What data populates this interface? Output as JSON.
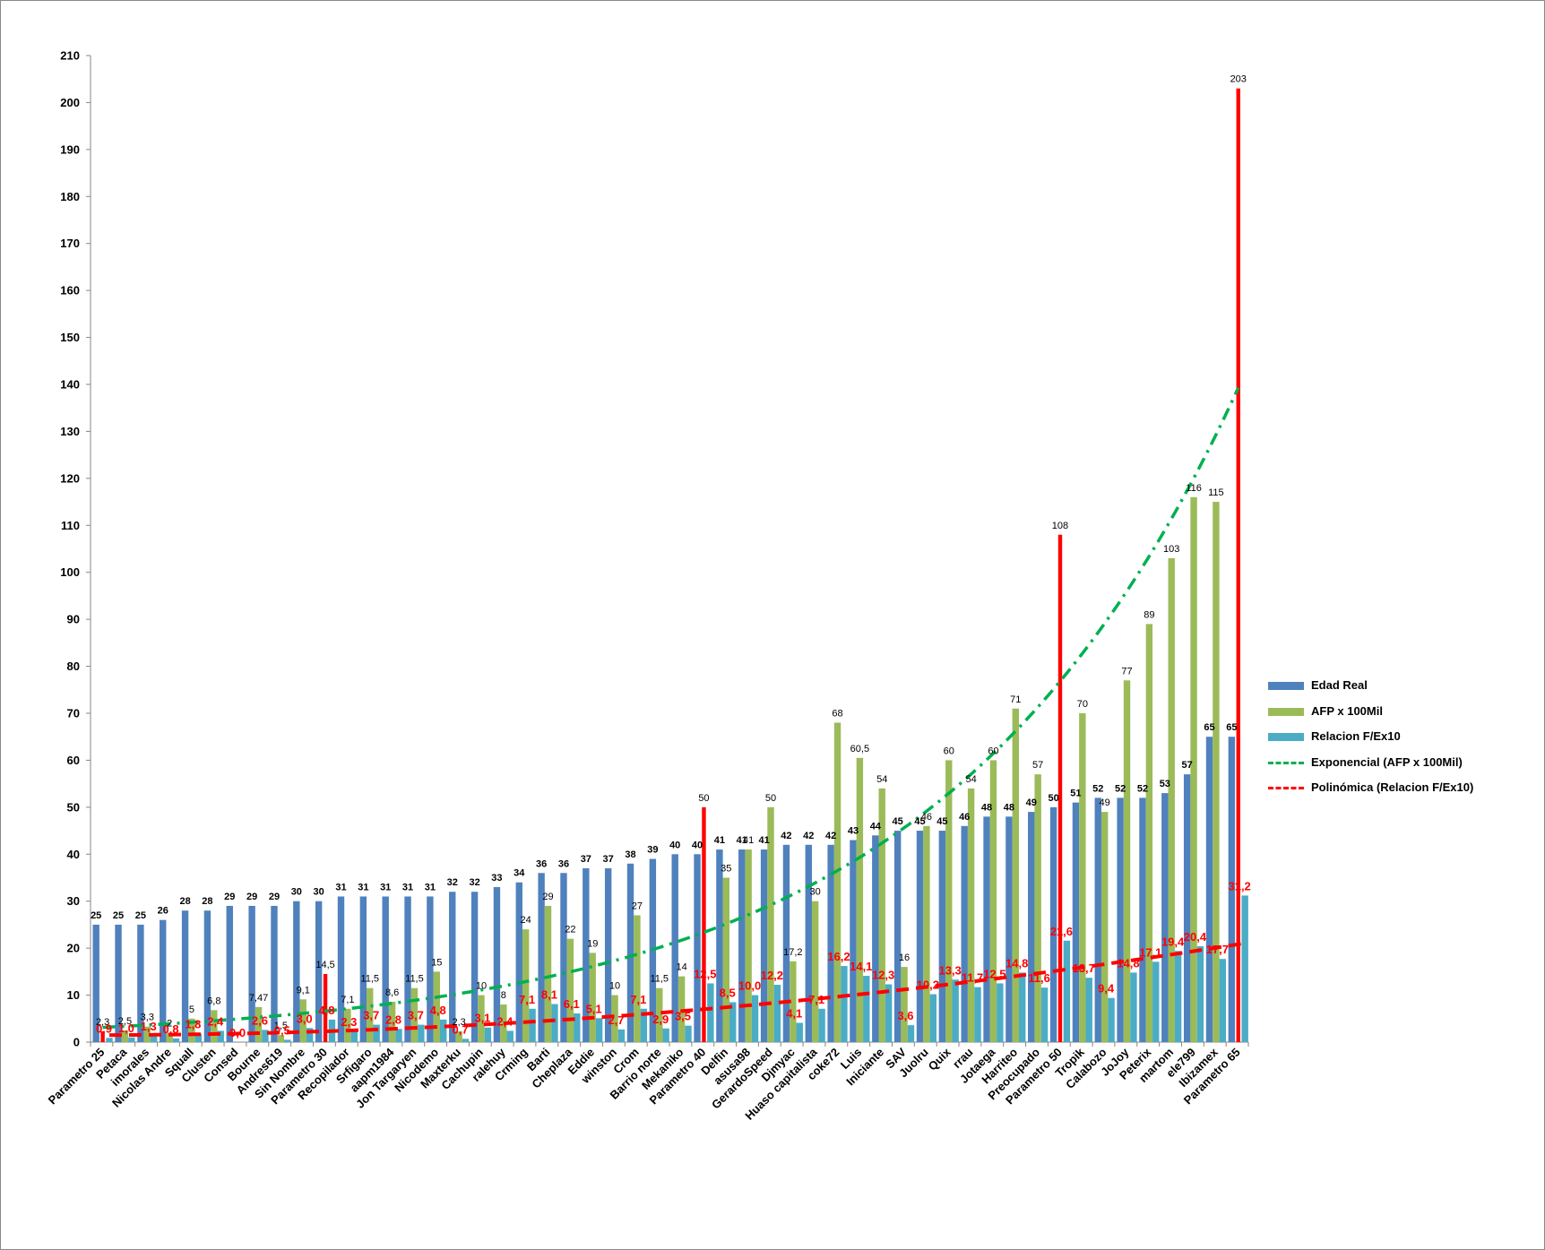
{
  "chart_data": {
    "type": "bar",
    "title": "",
    "xlabel": "",
    "ylabel": "",
    "ylim": [
      0,
      210
    ],
    "yticks": [
      0,
      10,
      20,
      30,
      40,
      50,
      60,
      70,
      80,
      90,
      100,
      110,
      120,
      130,
      140,
      150,
      160,
      170,
      180,
      190,
      200,
      210
    ],
    "grid": false,
    "legend_position": "right",
    "categories": [
      "Parametro 25",
      "Petaca",
      "imorales",
      "Nicolas Andre",
      "Squall",
      "Clusten",
      "Consed",
      "Bourne",
      "Andres619",
      "Sin Nombre",
      "Parametro 30",
      "Recopilador",
      "Srfigaro",
      "aapm1984",
      "Jon Targaryen",
      "Nicodemo",
      "Maxterku",
      "Cachupin",
      "ralehuy",
      "Crming",
      "Barti",
      "Cheplaza",
      "Eddie",
      "winston",
      "Crom",
      "Barrio norte",
      "Mekaniko",
      "Parametro 40",
      "Delfin",
      "asusa98",
      "GerardoSpeed",
      "Djmyac",
      "Huaso capitalista",
      "coke72",
      "Luis",
      "Iniciante",
      "SAV",
      "Juolru",
      "Quix",
      "rrau",
      "Jotaega",
      "Harriteo",
      "Preocupado",
      "Parametro 50",
      "Tropik",
      "Calabozo",
      "JoJoy",
      "Peterix",
      "martom",
      "ele799",
      "Ibizamex",
      "Parametro 65"
    ],
    "highlight_categories": [
      "Parametro 25",
      "Parametro 30",
      "Parametro 40",
      "Parametro 50",
      "Parametro 65"
    ],
    "series": [
      {
        "name": "Edad Real",
        "color": "#4f81bd",
        "values": [
          25,
          25,
          25,
          26,
          28,
          28,
          29,
          29,
          29,
          30,
          30,
          31,
          31,
          31,
          31,
          31,
          32,
          32,
          33,
          34,
          36,
          36,
          37,
          37,
          38,
          39,
          40,
          40,
          41,
          41,
          41,
          42,
          42,
          42,
          43,
          44,
          45,
          45,
          45,
          46,
          48,
          48,
          49,
          50,
          51,
          52,
          52,
          52,
          53,
          57,
          65,
          65
        ],
        "labels": [
          "25",
          "25",
          "25",
          "26",
          "28",
          "28",
          "29",
          "29",
          "29",
          "30",
          "30",
          "31",
          "31",
          "31",
          "31",
          "31",
          "32",
          "32",
          "33",
          "34",
          "36",
          "36",
          "37",
          "37",
          "38",
          "39",
          "40",
          "40",
          "41",
          "41",
          "41",
          "42",
          "42",
          "42",
          "43",
          "44",
          "45",
          "45",
          "45",
          "46",
          "48",
          "48",
          "49",
          "50",
          "51",
          "52",
          "52",
          "52",
          "53",
          "57",
          "65",
          "65"
        ]
      },
      {
        "name": "AFP x 100Mil",
        "color": "#9bbb59",
        "highlight_color": "#ff0000",
        "values": [
          2.3,
          2.5,
          3.3,
          2,
          5,
          6.8,
          0,
          7.47,
          1.5,
          9.1,
          14.5,
          7.1,
          11.5,
          8.6,
          11.5,
          15,
          2.3,
          10,
          8,
          24,
          29,
          22,
          19,
          10,
          27,
          11.5,
          14,
          50,
          35,
          41,
          50,
          17.2,
          30,
          68,
          60.5,
          54,
          16,
          46,
          60,
          54,
          60,
          71,
          57,
          108,
          70,
          49,
          77,
          89,
          103,
          116,
          115,
          203
        ],
        "labels": [
          "2,3",
          "2,5",
          "3,3",
          "2",
          "5",
          "6,8",
          "",
          "7,47",
          "1,5",
          "9,1",
          "14,5",
          "7,1",
          "11,5",
          "8,6",
          "11,5",
          "15",
          "2,3",
          "10",
          "8",
          "24",
          "29",
          "22",
          "19",
          "10",
          "27",
          "11,5",
          "14",
          "50",
          "35",
          "41",
          "50",
          "17,2",
          "30",
          "68",
          "60,5",
          "54",
          "16",
          "46",
          "60",
          "54",
          "60",
          "71",
          "57",
          "108",
          "70",
          "49",
          "77",
          "89",
          "103",
          "116",
          "115",
          "203"
        ]
      },
      {
        "name": "Relacion F/Ex10",
        "color": "#4bacc6",
        "values": [
          0.9,
          1,
          1.3,
          0.8,
          1.8,
          2.4,
          0,
          2.6,
          0.5,
          3,
          4.8,
          2.3,
          3.7,
          2.8,
          3.7,
          4.8,
          0.7,
          3.1,
          2.4,
          7.1,
          8.1,
          6.1,
          5.1,
          2.7,
          7.1,
          2.9,
          3.5,
          12.5,
          8.5,
          10,
          12.2,
          4.1,
          7.1,
          16.2,
          14.1,
          12.3,
          3.6,
          10.2,
          13.3,
          11.7,
          12.5,
          14.8,
          11.6,
          21.6,
          13.7,
          9.4,
          14.8,
          17.1,
          19.4,
          20.4,
          17.7,
          31.2
        ],
        "labels": [
          "0,9",
          "1,0",
          "1,3",
          "0,8",
          "1,8",
          "2,4",
          "0,0",
          "2,6",
          "0,5",
          "3,0",
          "4,8",
          "2,3",
          "3,7",
          "2,8",
          "3,7",
          "4,8",
          "0,7",
          "3,1",
          "2,4",
          "7,1",
          "8,1",
          "6,1",
          "5,1",
          "2,7",
          "7,1",
          "2,9",
          "3,5",
          "12,5",
          "8,5",
          "10,0",
          "12,2",
          "4,1",
          "7,1",
          "16,2",
          "14,1",
          "12,3",
          "3,6",
          "10,2",
          "13,3",
          "11,7",
          "12,5",
          "14,8",
          "11,6",
          "21,6",
          "13,7",
          "9,4",
          "14,8",
          "17,1",
          "19,4",
          "20,4",
          "17,7",
          "31,2"
        ]
      }
    ],
    "trendlines": [
      {
        "name": "Exponencial (AFP x 100Mil)",
        "type": "exponential",
        "of_series": "AFP x 100Mil",
        "color": "#00b050",
        "style": "dash-dot"
      },
      {
        "name": "Polinómica (Relacion F/Ex10)",
        "type": "polynomial",
        "of_series": "Relacion F/Ex10",
        "color": "#ff0000",
        "style": "dashed"
      }
    ]
  }
}
